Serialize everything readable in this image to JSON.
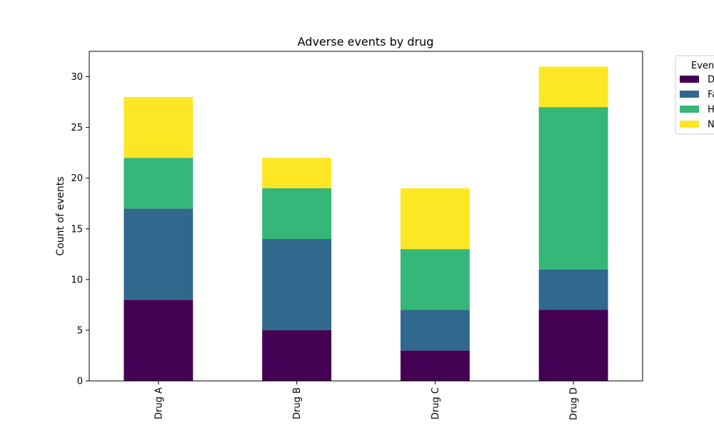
{
  "chart_data": {
    "type": "bar",
    "stacked": true,
    "title": "Adverse events by drug",
    "xlabel": "",
    "ylabel": "Count of events",
    "categories": [
      "Drug A",
      "Drug B",
      "Drug C",
      "Drug D"
    ],
    "ylim": [
      0,
      32.5
    ],
    "yticks": [
      0,
      5,
      10,
      15,
      20,
      25,
      30
    ],
    "grid": false,
    "legend": {
      "title": "Even",
      "placement": "outside-right-top",
      "entries": [
        "D",
        "Fa",
        "H",
        "N"
      ]
    },
    "series": [
      {
        "color": "#440154",
        "values": [
          8,
          5,
          3,
          7
        ]
      },
      {
        "color": "#31688e",
        "values": [
          9,
          9,
          4,
          4
        ]
      },
      {
        "color": "#35b779",
        "values": [
          5,
          5,
          6,
          16
        ]
      },
      {
        "color": "#fde725",
        "values": [
          6,
          3,
          6,
          4
        ]
      }
    ]
  }
}
